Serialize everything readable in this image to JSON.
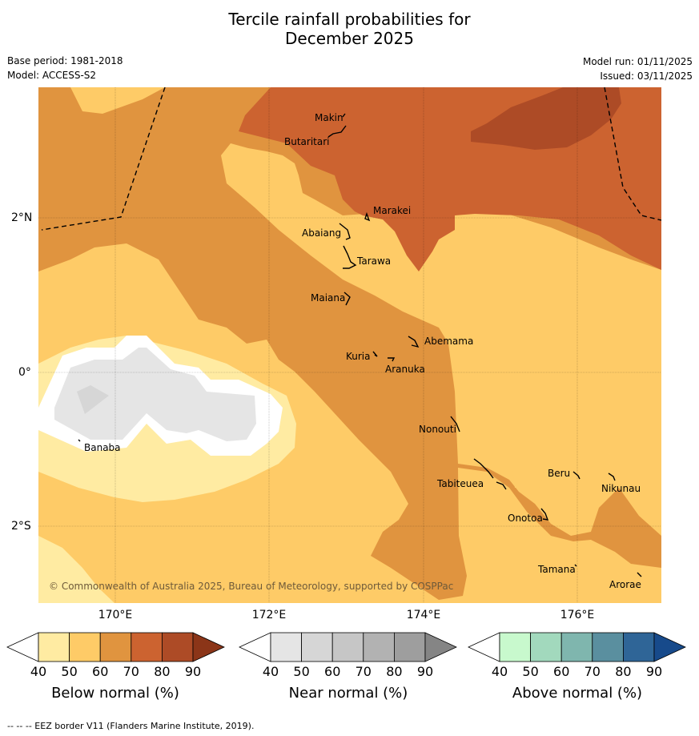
{
  "title": {
    "line1": "Tercile rainfall probabilities for",
    "line2": "December 2025"
  },
  "meta": {
    "base_period": "Base period: 1981-2018",
    "model": "Model: ACCESS-S2",
    "model_run": "Model run: 01/11/2025",
    "issued": "Issued: 03/11/2025"
  },
  "axes": {
    "lon_labels": [
      "170°E",
      "172°E",
      "174°E",
      "176°E"
    ],
    "lat_labels": [
      "2°N",
      "0°",
      "2°S"
    ]
  },
  "places": [
    "Makin",
    "Butaritari",
    "Marakei",
    "Abaiang",
    "Tarawa",
    "Maiana",
    "Abemama",
    "Kuria",
    "Aranuka",
    "Nonouti",
    "Banaba",
    "Tabiteuea",
    "Beru",
    "Nikunau",
    "Onotoa",
    "Tamana",
    "Arorae"
  ],
  "copyright": "© Commonwealth of Australia 2025, Bureau of Meteorology, supported by COSPPac",
  "colorbars": [
    {
      "label": "Below normal (%)",
      "ticks": [
        "40",
        "50",
        "60",
        "70",
        "80",
        "90"
      ],
      "colors": [
        "#ffffff",
        "#ffeba2",
        "#fecb67",
        "#e0943f",
        "#cc6330",
        "#ad4b26",
        "#8b3518"
      ]
    },
    {
      "label": "Near normal (%)",
      "ticks": [
        "40",
        "50",
        "60",
        "70",
        "80",
        "90"
      ],
      "colors": [
        "#ffffff",
        "#e5e5e5",
        "#d6d6d6",
        "#c6c6c6",
        "#b2b2b2",
        "#9e9e9e",
        "#858585"
      ]
    },
    {
      "label": "Above normal (%)",
      "ticks": [
        "40",
        "50",
        "60",
        "70",
        "80",
        "90"
      ],
      "colors": [
        "#ffffff",
        "#c8f9cd",
        "#a2d9bd",
        "#7fb6ae",
        "#5a8f9f",
        "#2f6597",
        "#174a8b"
      ]
    }
  ],
  "footer": "--  --  -- EEZ border V11 (Flanders Marine Institute, 2019)."
}
